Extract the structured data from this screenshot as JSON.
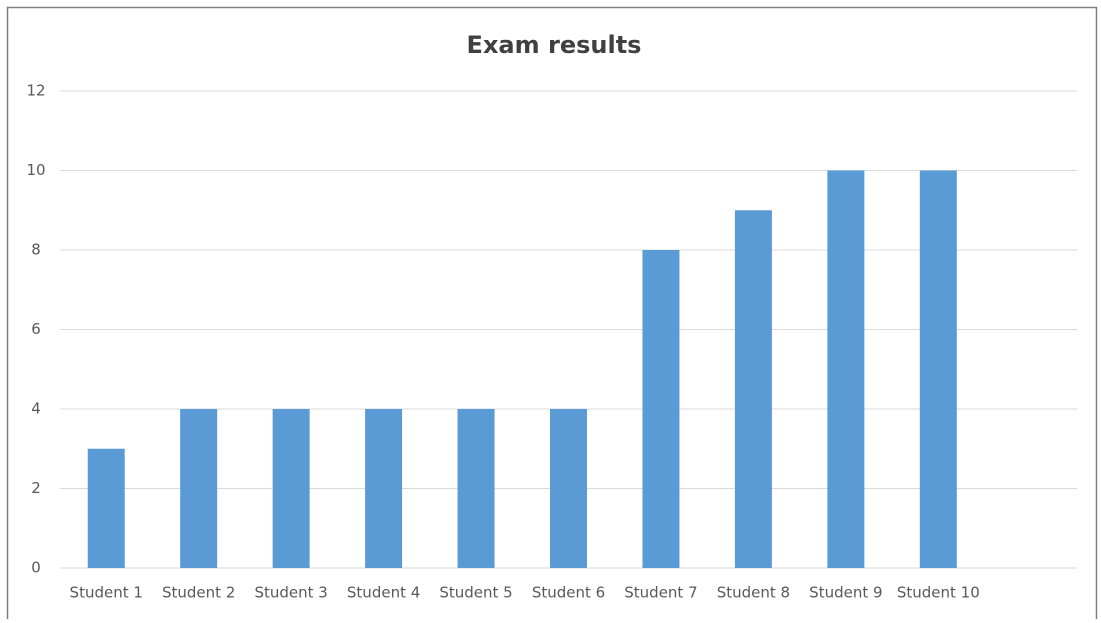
{
  "chart_data": {
    "type": "bar",
    "title": "Exam results",
    "categories": [
      "Student 1",
      "Student 2",
      "Student 3",
      "Student 4",
      "Student 5",
      "Student 6",
      "Student 7",
      "Student 8",
      "Student 9",
      "Student 10"
    ],
    "values": [
      3,
      4,
      4,
      4,
      4,
      4,
      8,
      9,
      10,
      10
    ],
    "color": "#5b9bd5",
    "ylim": [
      0,
      12
    ],
    "yticks": [
      0,
      2,
      4,
      6,
      8,
      10,
      12
    ],
    "grid": true
  }
}
